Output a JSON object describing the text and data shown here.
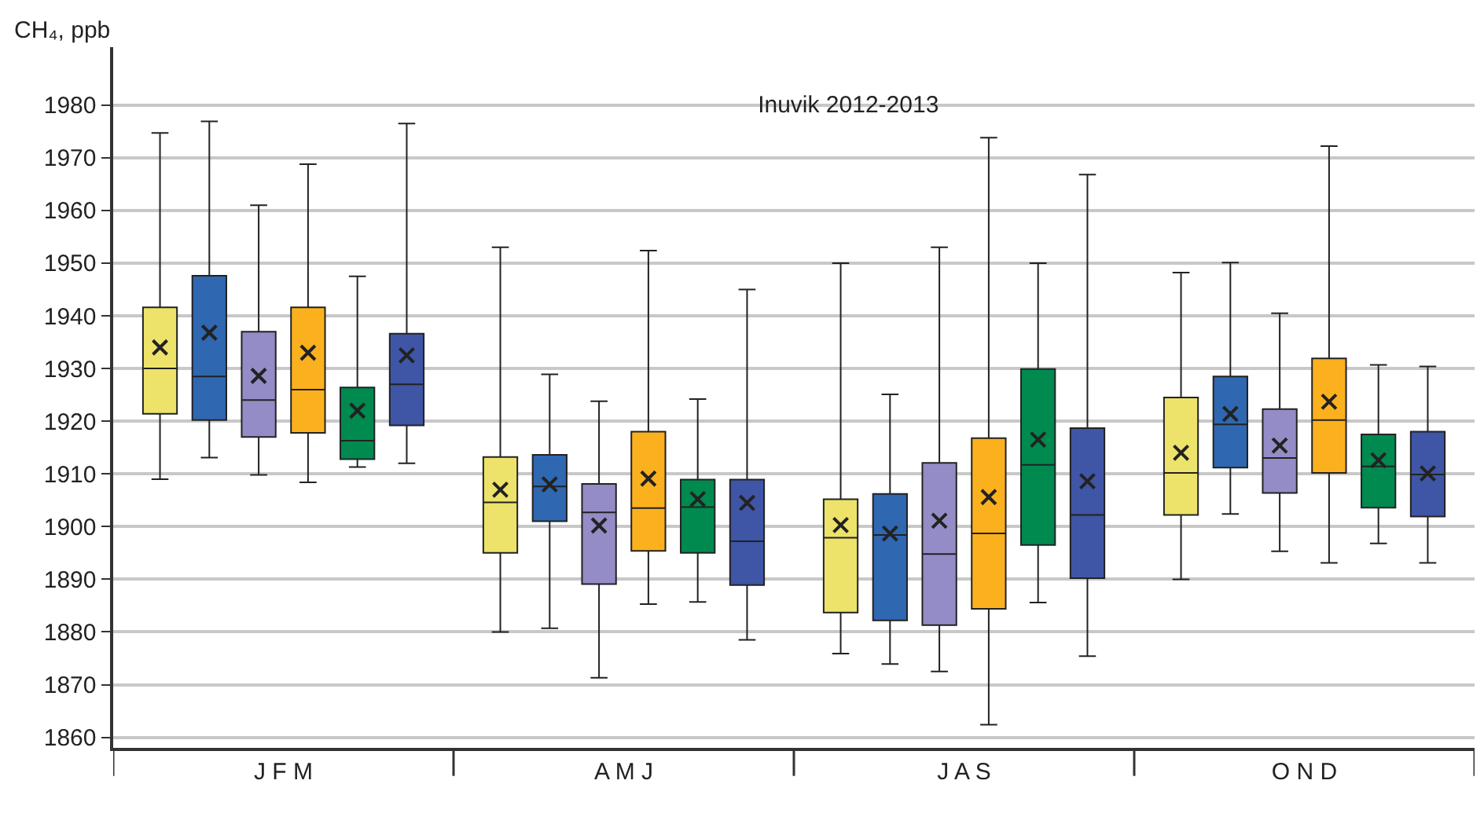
{
  "chart_data": {
    "type": "box",
    "title": "Inuvik 2012-2013",
    "ylabel": "CH₄, ppb",
    "categories": [
      "J F M",
      "A M J",
      "J A S",
      "O N D"
    ],
    "ylim": [
      1858,
      1991
    ],
    "yticks": [
      1860,
      1870,
      1880,
      1890,
      1900,
      1910,
      1920,
      1930,
      1940,
      1950,
      1960,
      1970,
      1980
    ],
    "grid": "y",
    "series": [
      {
        "color": "#ede36a",
        "boxes": [
          {
            "low": 1909,
            "q1": 1921.4,
            "median": 1930,
            "q3": 1941.6,
            "high": 1974.7,
            "mean": 1934
          },
          {
            "low": 1880,
            "q1": 1895,
            "median": 1904.6,
            "q3": 1913.2,
            "high": 1953,
            "mean": 1907
          },
          {
            "low": 1875.9,
            "q1": 1883.7,
            "median": 1897.9,
            "q3": 1905.2,
            "high": 1950,
            "mean": 1900.3
          },
          {
            "low": 1890,
            "q1": 1902.2,
            "median": 1910.2,
            "q3": 1924.5,
            "high": 1948.2,
            "mean": 1914
          }
        ]
      },
      {
        "color": "#2f67b1",
        "boxes": [
          {
            "low": 1913.1,
            "q1": 1920.2,
            "median": 1928.5,
            "q3": 1947.6,
            "high": 1976.9,
            "mean": 1936.8
          },
          {
            "low": 1880.7,
            "q1": 1901,
            "median": 1907.6,
            "q3": 1913.6,
            "high": 1928.9,
            "mean": 1908
          },
          {
            "low": 1873.9,
            "q1": 1882.2,
            "median": 1898.4,
            "q3": 1906.2,
            "high": 1925.1,
            "mean": 1898.7
          },
          {
            "low": 1902.4,
            "q1": 1911.2,
            "median": 1919.4,
            "q3": 1928.5,
            "high": 1950.1,
            "mean": 1921.4
          }
        ]
      },
      {
        "color": "#948cc6",
        "boxes": [
          {
            "low": 1909.8,
            "q1": 1917,
            "median": 1924,
            "q3": 1937,
            "high": 1961,
            "mean": 1928.6
          },
          {
            "low": 1871.3,
            "q1": 1889.1,
            "median": 1902.7,
            "q3": 1908.1,
            "high": 1923.8,
            "mean": 1900.2
          },
          {
            "low": 1872.5,
            "q1": 1881.3,
            "median": 1894.8,
            "q3": 1912.1,
            "high": 1953,
            "mean": 1901.1
          },
          {
            "low": 1895.3,
            "q1": 1906.4,
            "median": 1913,
            "q3": 1922.3,
            "high": 1940.5,
            "mean": 1915.4
          }
        ]
      },
      {
        "color": "#fbb11e",
        "boxes": [
          {
            "low": 1908.4,
            "q1": 1917.8,
            "median": 1926,
            "q3": 1941.6,
            "high": 1968.8,
            "mean": 1933
          },
          {
            "low": 1885.3,
            "q1": 1895.4,
            "median": 1903.5,
            "q3": 1918,
            "high": 1952.4,
            "mean": 1909.1
          },
          {
            "low": 1862.4,
            "q1": 1884.4,
            "median": 1898.7,
            "q3": 1916.8,
            "high": 1973.8,
            "mean": 1905.6
          },
          {
            "low": 1893.1,
            "q1": 1910.2,
            "median": 1920.2,
            "q3": 1931.9,
            "high": 1972.2,
            "mean": 1923.7
          }
        ]
      },
      {
        "color": "#008a50",
        "boxes": [
          {
            "low": 1911.3,
            "q1": 1912.8,
            "median": 1916.3,
            "q3": 1926.4,
            "high": 1947.5,
            "mean": 1922
          },
          {
            "low": 1885.7,
            "q1": 1895,
            "median": 1903.7,
            "q3": 1908.9,
            "high": 1924.2,
            "mean": 1905.2
          },
          {
            "low": 1885.6,
            "q1": 1896.5,
            "median": 1911.7,
            "q3": 1929.9,
            "high": 1950,
            "mean": 1916.5
          },
          {
            "low": 1896.8,
            "q1": 1903.6,
            "median": 1911.4,
            "q3": 1917.5,
            "high": 1930.7,
            "mean": 1912.6
          }
        ]
      },
      {
        "color": "#3f55a5",
        "boxes": [
          {
            "low": 1912,
            "q1": 1919.2,
            "median": 1927,
            "q3": 1936.6,
            "high": 1976.5,
            "mean": 1932.5
          },
          {
            "low": 1878.5,
            "q1": 1888.9,
            "median": 1897.2,
            "q3": 1908.9,
            "high": 1945,
            "mean": 1904.5
          },
          {
            "low": 1875.4,
            "q1": 1890.2,
            "median": 1902.2,
            "q3": 1918.7,
            "high": 1966.8,
            "mean": 1908.6
          },
          {
            "low": 1893.1,
            "q1": 1901.9,
            "median": 1909.9,
            "q3": 1918,
            "high": 1930.4,
            "mean": 1910.1
          }
        ]
      }
    ]
  }
}
